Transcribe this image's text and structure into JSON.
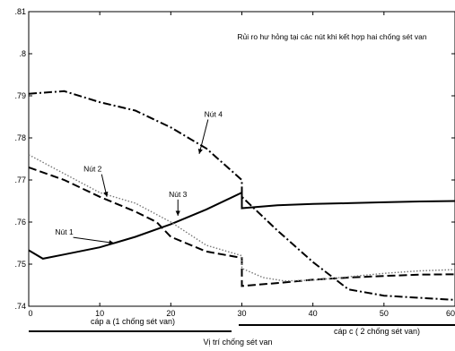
{
  "chart_data": {
    "type": "line",
    "title": "Rủi ro hư hỏng tại các nút khi kết hợp hai chống sét van",
    "xlabel": "Vị trí chống sét van",
    "ylabel": "",
    "xlim": [
      0,
      60
    ],
    "ylim": [
      0.74,
      0.81
    ],
    "x_ticks": [
      "0",
      "10",
      "20",
      "30",
      "40",
      "50",
      "60"
    ],
    "y_ticks": [
      ".74",
      ".75",
      ".76",
      ".77",
      ".78",
      ".79",
      ".8",
      ".81"
    ],
    "grid": false,
    "section_labels": [
      "cáp a (1 chống sét van)",
      "cáp c ( 2 chống sét van)"
    ],
    "series": [
      {
        "name": "Nút 1",
        "style": "solid",
        "x": [
          0,
          2,
          5,
          10,
          15,
          20,
          25,
          30,
          30,
          35,
          40,
          45,
          50,
          55,
          60
        ],
        "y": [
          0.7533,
          0.7513,
          0.7523,
          0.754,
          0.7565,
          0.7595,
          0.763,
          0.767,
          0.7633,
          0.764,
          0.7643,
          0.7645,
          0.7647,
          0.7649,
          0.765
        ]
      },
      {
        "name": "Nút 2",
        "style": "dashed",
        "x": [
          0,
          5,
          10,
          15,
          18,
          20,
          25,
          30,
          30,
          35,
          40,
          45,
          50,
          55,
          60
        ],
        "y": [
          0.773,
          0.77,
          0.766,
          0.7625,
          0.76,
          0.7565,
          0.753,
          0.7515,
          0.7448,
          0.7455,
          0.7463,
          0.7468,
          0.7472,
          0.7475,
          0.7476
        ]
      },
      {
        "name": "Nút 3",
        "style": "dotted",
        "x": [
          0,
          5,
          10,
          15,
          20,
          25,
          30,
          30,
          33,
          36,
          40,
          45,
          50,
          55,
          60
        ],
        "y": [
          0.776,
          0.7715,
          0.767,
          0.7645,
          0.76,
          0.7545,
          0.752,
          0.749,
          0.7468,
          0.746,
          0.7462,
          0.747,
          0.7478,
          0.7484,
          0.7487
        ]
      },
      {
        "name": "Nút 4",
        "style": "dashdot",
        "x": [
          0,
          5,
          10,
          15,
          20,
          25,
          30,
          30,
          35,
          40,
          45,
          50,
          55,
          60
        ],
        "y": [
          0.7905,
          0.7911,
          0.7885,
          0.7865,
          0.7825,
          0.7775,
          0.77,
          0.766,
          0.758,
          0.7505,
          0.744,
          0.7425,
          0.742,
          0.7415
        ]
      }
    ],
    "annotations": [
      {
        "text": "Nút 1",
        "x": 5,
        "y": 0.757,
        "to_x": 12,
        "to_y": 0.755
      },
      {
        "text": "Nút 2",
        "x": 9,
        "y": 0.772,
        "to_x": 11,
        "to_y": 0.766
      },
      {
        "text": "Nút 3",
        "x": 21,
        "y": 0.766,
        "to_x": 21,
        "to_y": 0.7615
      },
      {
        "text": "Nút 4",
        "x": 26,
        "y": 0.785,
        "to_x": 24,
        "to_y": 0.7762
      }
    ]
  }
}
